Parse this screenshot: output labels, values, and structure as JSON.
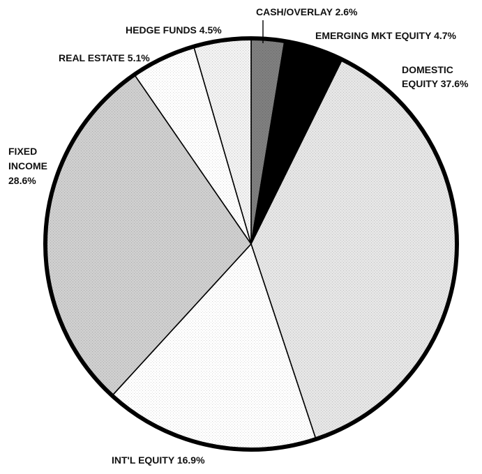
{
  "chart_data": {
    "type": "pie",
    "start": "12 o'clock",
    "direction": "clockwise",
    "slices": [
      {
        "label": "CASH/OVERLAY",
        "value": 2.6,
        "display": "CASH/OVERLAY 2.6%",
        "color": "#7f7f7f"
      },
      {
        "label": "EMERGING MKT EQUITY",
        "value": 4.7,
        "display": "EMERGING MKT EQUITY 4.7%",
        "color": "#000000"
      },
      {
        "label": "DOMESTIC EQUITY",
        "value": 37.6,
        "display": [
          "DOMESTIC",
          "EQUITY 37.6%"
        ],
        "color": "#e6e6e6"
      },
      {
        "label": "INT'L EQUITY",
        "value": 16.9,
        "display": "INT'L EQUITY  16.9%",
        "color": "#ffffff"
      },
      {
        "label": "FIXED INCOME",
        "value": 28.6,
        "display": [
          "FIXED",
          "INCOME",
          "28.6%"
        ],
        "color": "#cfcfcf"
      },
      {
        "label": "REAL ESTATE",
        "value": 5.1,
        "display": "REAL ESTATE 5.1%",
        "color": "#ffffff"
      },
      {
        "label": "HEDGE FUNDS",
        "value": 4.5,
        "display": "HEDGE FUNDS 4.5%",
        "color": "#f2f2f2"
      }
    ]
  }
}
